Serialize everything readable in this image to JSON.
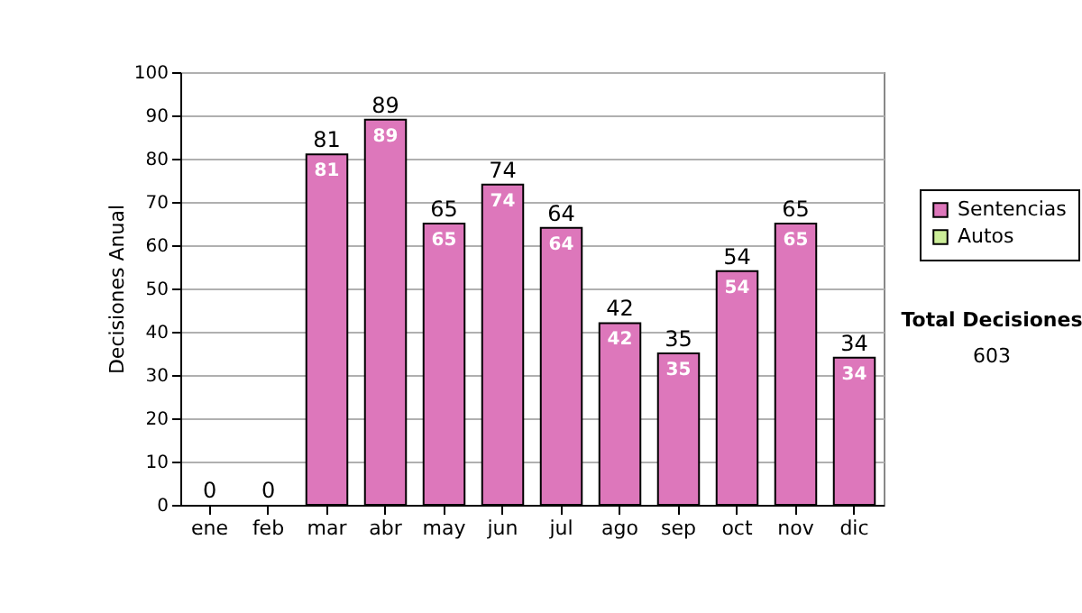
{
  "chart_data": {
    "type": "bar",
    "ylabel": "Decisiones Anual",
    "categories": [
      "ene",
      "feb",
      "mar",
      "abr",
      "may",
      "jun",
      "jul",
      "ago",
      "sep",
      "oct",
      "nov",
      "dic"
    ],
    "stacked": true,
    "series": [
      {
        "name": "Sentencias",
        "color": "#dd77bb",
        "values": [
          0,
          0,
          81,
          89,
          65,
          74,
          64,
          42,
          35,
          54,
          65,
          34
        ],
        "value_labels": [
          null,
          null,
          "81",
          "89",
          "65",
          "74",
          "64",
          "42",
          "35",
          "54",
          "65",
          "34"
        ]
      },
      {
        "name": "Autos",
        "color": "#ccee99",
        "values": [
          0,
          0,
          0,
          0,
          0,
          0,
          0,
          0,
          0,
          0,
          0,
          0
        ]
      }
    ],
    "totals": [
      "0",
      "0",
      "81",
      "89",
      "65",
      "74",
      "64",
      "42",
      "35",
      "54",
      "65",
      "34"
    ],
    "ylim": [
      0,
      100
    ],
    "yticks": [
      0,
      10,
      20,
      30,
      40,
      50,
      60,
      70,
      80,
      90,
      100
    ],
    "grid": "y",
    "legend": "right",
    "annotations": [
      "Total Decisiones",
      "603"
    ]
  }
}
